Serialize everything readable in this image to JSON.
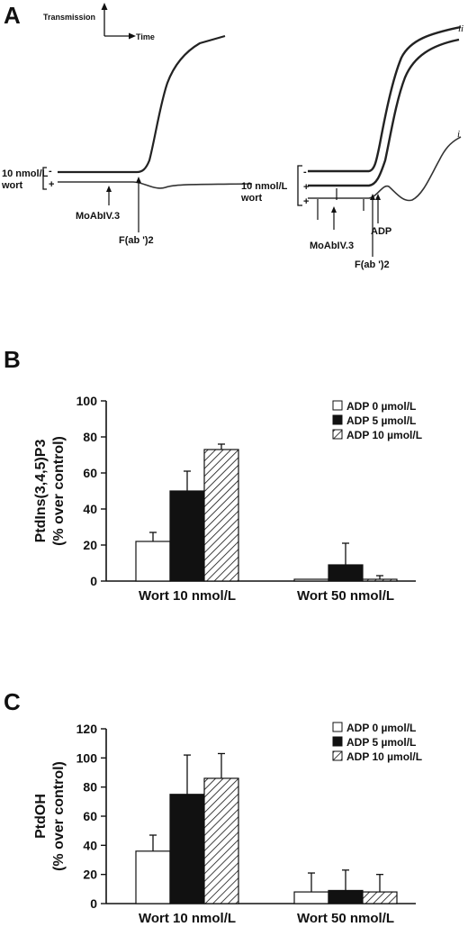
{
  "panel_a": {
    "letter": "A",
    "transmission_label": "Transmission",
    "time_label": "Time",
    "left": {
      "wort_line1": "10 nmol/L",
      "wort_line2": "wort",
      "minus": "-",
      "plus": "+",
      "moab": "MoAbIV.3",
      "fab": "F(ab ')2"
    },
    "right": {
      "wort_line1": "10 nmol/L",
      "wort_line2": "wort",
      "minus": "-",
      "plus1": "+",
      "plus2": "+",
      "moab": "MoAbIV.3",
      "adp": "ADP",
      "fab": "F(ab ')2",
      "trace_ii": "ii",
      "trace_i": "i"
    }
  },
  "chart_data": [
    {
      "panel": "B",
      "type": "bar",
      "categories": [
        "Wort 10 nmol/L",
        "Wort 50 nmol/L"
      ],
      "series": [
        {
          "name": "ADP 0 µmol/L",
          "values": [
            22,
            1
          ],
          "errors": [
            5,
            0
          ],
          "fill": "open"
        },
        {
          "name": "ADP 5 µmol/L",
          "values": [
            50,
            9
          ],
          "errors": [
            11,
            12
          ],
          "fill": "solid"
        },
        {
          "name": "ADP 10 µmol/L",
          "values": [
            73,
            1
          ],
          "errors": [
            3,
            2
          ],
          "fill": "hatched"
        }
      ],
      "ylabel_line1": "PtdIns(3,4,5)P3",
      "ylabel_line2": "(% over control)",
      "ylim": [
        0,
        100
      ],
      "yticks": [
        0,
        20,
        40,
        60,
        80,
        100
      ],
      "legend_position": "top-right"
    },
    {
      "panel": "C",
      "type": "bar",
      "categories": [
        "Wort 10 nmol/L",
        "Wort 50 nmol/L"
      ],
      "series": [
        {
          "name": "ADP 0 µmol/L",
          "values": [
            36,
            8
          ],
          "errors": [
            11,
            13
          ],
          "fill": "open"
        },
        {
          "name": "ADP 5 µmol/L",
          "values": [
            75,
            9
          ],
          "errors": [
            27,
            14
          ],
          "fill": "solid"
        },
        {
          "name": "ADP 10 µmol/L",
          "values": [
            86,
            8
          ],
          "errors": [
            17,
            12
          ],
          "fill": "hatched"
        }
      ],
      "ylabel_line1": "PtdOH",
      "ylabel_line2": "(% over control)",
      "ylim": [
        0,
        120
      ],
      "yticks": [
        0,
        20,
        40,
        60,
        80,
        100,
        120
      ],
      "legend_position": "top-right"
    }
  ]
}
